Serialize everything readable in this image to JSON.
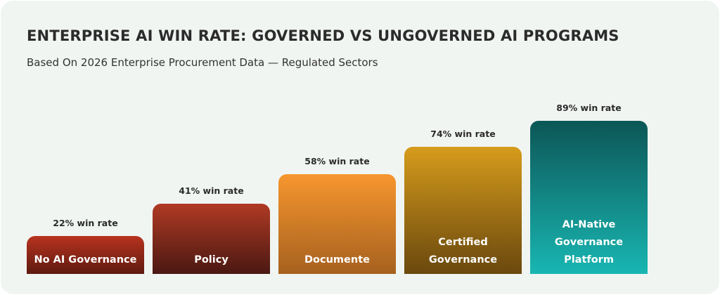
{
  "chart_data": {
    "type": "bar",
    "title": "ENTERPRISE AI WIN RATE: GOVERNED VS UNGOVERNED AI PROGRAMS",
    "subtitle": "Based On 2026 Enterprise Procurement Data — Regulated Sectors",
    "categories": [
      "No AI Governance",
      "Policy",
      "Documente",
      "Certified Governance",
      "AI-Native Governance Platform"
    ],
    "values": [
      22,
      41,
      58,
      74,
      89
    ],
    "value_labels": [
      "22% win rate",
      "41% win rate",
      "58% win rate",
      "74% win rate",
      "89% win rate"
    ],
    "colors": [
      [
        "#b8331f",
        "#5e1a10"
      ],
      [
        "#b03a24",
        "#4a1812"
      ],
      [
        "#f7962e",
        "#a6611f"
      ],
      [
        "#d69c1c",
        "#6a480e"
      ],
      [
        "#0c5656",
        "#19b6b2"
      ]
    ]
  }
}
